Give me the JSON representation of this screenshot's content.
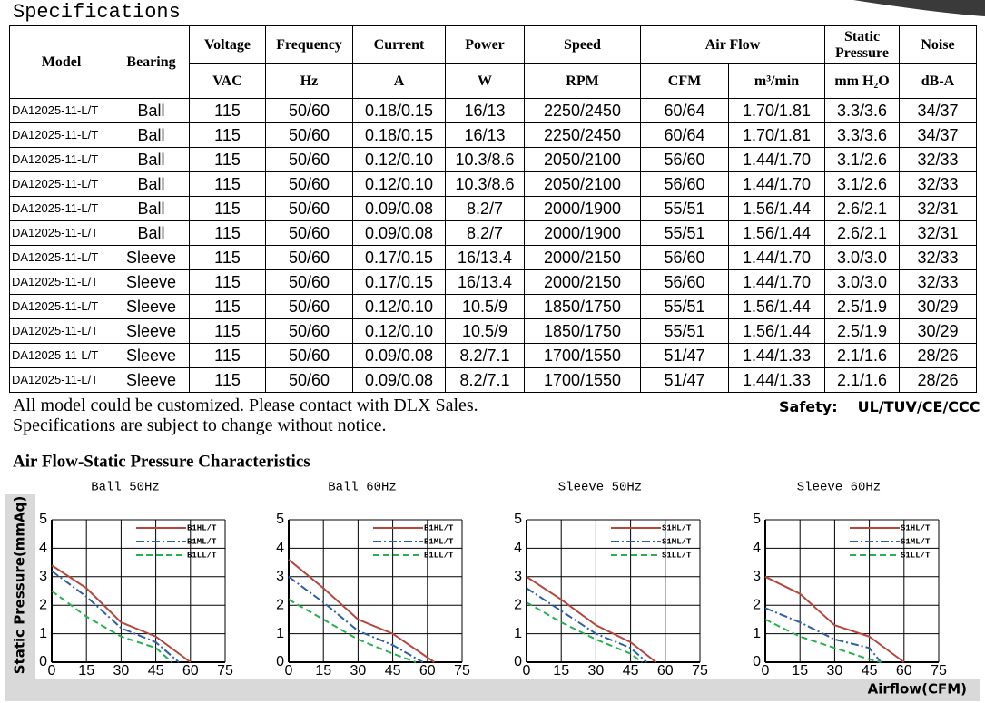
{
  "heading": "Specifications",
  "table": {
    "header_top": [
      "Model",
      "Bearing",
      "Voltage",
      "Frequency",
      "Current",
      "Power",
      "Speed",
      "Air Flow",
      "Static Pressure",
      "Noise"
    ],
    "header_units": [
      "VAC",
      "Hz",
      "A",
      "W",
      "RPM",
      "CFM",
      "m³/min",
      "mm H₂O",
      "dB-A"
    ],
    "rows": [
      [
        "DA12025-11-L/T",
        "Ball",
        "115",
        "50/60",
        "0.18/0.15",
        "16/13",
        "2250/2450",
        "60/64",
        "1.70/1.81",
        "3.3/3.6",
        "34/37"
      ],
      [
        "DA12025-11-L/T",
        "Ball",
        "115",
        "50/60",
        "0.18/0.15",
        "16/13",
        "2250/2450",
        "60/64",
        "1.70/1.81",
        "3.3/3.6",
        "34/37"
      ],
      [
        "DA12025-11-L/T",
        "Ball",
        "115",
        "50/60",
        "0.12/0.10",
        "10.3/8.6",
        "2050/2100",
        "56/60",
        "1.44/1.70",
        "3.1/2.6",
        "32/33"
      ],
      [
        "DA12025-11-L/T",
        "Ball",
        "115",
        "50/60",
        "0.12/0.10",
        "10.3/8.6",
        "2050/2100",
        "56/60",
        "1.44/1.70",
        "3.1/2.6",
        "32/33"
      ],
      [
        "DA12025-11-L/T",
        "Ball",
        "115",
        "50/60",
        "0.09/0.08",
        "8.2/7",
        "2000/1900",
        "55/51",
        "1.56/1.44",
        "2.6/2.1",
        "32/31"
      ],
      [
        "DA12025-11-L/T",
        "Ball",
        "115",
        "50/60",
        "0.09/0.08",
        "8.2/7",
        "2000/1900",
        "55/51",
        "1.56/1.44",
        "2.6/2.1",
        "32/31"
      ],
      [
        "DA12025-11-L/T",
        "Sleeve",
        "115",
        "50/60",
        "0.17/0.15",
        "16/13.4",
        "2000/2150",
        "56/60",
        "1.44/1.70",
        "3.0/3.0",
        "32/33"
      ],
      [
        "DA12025-11-L/T",
        "Sleeve",
        "115",
        "50/60",
        "0.17/0.15",
        "16/13.4",
        "2000/2150",
        "56/60",
        "1.44/1.70",
        "3.0/3.0",
        "32/33"
      ],
      [
        "DA12025-11-L/T",
        "Sleeve",
        "115",
        "50/60",
        "0.12/0.10",
        "10.5/9",
        "1850/1750",
        "55/51",
        "1.56/1.44",
        "2.5/1.9",
        "30/29"
      ],
      [
        "DA12025-11-L/T",
        "Sleeve",
        "115",
        "50/60",
        "0.12/0.10",
        "10.5/9",
        "1850/1750",
        "55/51",
        "1.56/1.44",
        "2.5/1.9",
        "30/29"
      ],
      [
        "DA12025-11-L/T",
        "Sleeve",
        "115",
        "50/60",
        "0.09/0.08",
        "8.2/7.1",
        "1700/1550",
        "51/47",
        "1.44/1.33",
        "2.1/1.6",
        "28/26"
      ],
      [
        "DA12025-11-L/T",
        "Sleeve",
        "115",
        "50/60",
        "0.09/0.08",
        "8.2/7.1",
        "1700/1550",
        "51/47",
        "1.44/1.33",
        "2.1/1.6",
        "28/26"
      ]
    ]
  },
  "notes": [
    "All model could be customized. Please contact with DLX Sales.",
    "Specifications are subject to change without notice."
  ],
  "safety": {
    "label": "Safety:",
    "value": "UL/TUV/CE/CCC"
  },
  "section_title": "Air Flow-Static Pressure Characteristics",
  "y_axis_label": "Static Pressure(mmAq)",
  "x_axis_label": "Airflow(CFM)",
  "chart_data": [
    {
      "type": "line",
      "title": "Ball 50Hz",
      "xlim": [
        0,
        75
      ],
      "xticks": [
        0,
        15,
        30,
        45,
        60,
        75
      ],
      "ylim": [
        0,
        5
      ],
      "yticks": [
        0,
        1,
        2,
        3,
        4,
        5
      ],
      "grid": true,
      "series": [
        {
          "name": "B1HL/T",
          "color": "#b5473f",
          "dash": "solid",
          "x": [
            0,
            15,
            30,
            45,
            60
          ],
          "values": [
            3.4,
            2.6,
            1.4,
            0.9,
            0
          ]
        },
        {
          "name": "B1ML/T",
          "color": "#2e5fa8",
          "dash": "dashdot",
          "x": [
            0,
            15,
            30,
            45,
            55
          ],
          "values": [
            3.2,
            2.3,
            1.2,
            0.7,
            0
          ]
        },
        {
          "name": "B1LL/T",
          "color": "#27b050",
          "dash": "dashed",
          "x": [
            0,
            15,
            30,
            45,
            52
          ],
          "values": [
            2.5,
            1.6,
            0.9,
            0.5,
            0
          ]
        }
      ]
    },
    {
      "type": "line",
      "title": "Ball 60Hz",
      "xlim": [
        0,
        75
      ],
      "xticks": [
        0,
        15,
        30,
        45,
        60,
        75
      ],
      "ylim": [
        0,
        5
      ],
      "yticks": [
        0,
        1,
        2,
        3,
        4,
        5
      ],
      "grid": true,
      "series": [
        {
          "name": "B1HL/T",
          "color": "#b5473f",
          "dash": "solid",
          "x": [
            0,
            15,
            30,
            45,
            63
          ],
          "values": [
            3.6,
            2.6,
            1.5,
            1.0,
            0
          ]
        },
        {
          "name": "B1ML/T",
          "color": "#2e5fa8",
          "dash": "dashdot",
          "x": [
            0,
            15,
            30,
            45,
            58
          ],
          "values": [
            3.0,
            2.1,
            1.1,
            0.6,
            0
          ]
        },
        {
          "name": "B1LL/T",
          "color": "#27b050",
          "dash": "dashed",
          "x": [
            0,
            15,
            30,
            45,
            55
          ],
          "values": [
            2.2,
            1.5,
            0.8,
            0.3,
            0
          ]
        }
      ]
    },
    {
      "type": "line",
      "title": "Sleeve 50Hz",
      "xlim": [
        0,
        75
      ],
      "xticks": [
        0,
        15,
        30,
        45,
        60,
        75
      ],
      "ylim": [
        0,
        5
      ],
      "yticks": [
        0,
        1,
        2,
        3,
        4,
        5
      ],
      "grid": true,
      "series": [
        {
          "name": "S1HL/T",
          "color": "#b5473f",
          "dash": "solid",
          "x": [
            0,
            15,
            30,
            45,
            56
          ],
          "values": [
            3.0,
            2.2,
            1.3,
            0.7,
            0
          ]
        },
        {
          "name": "S1ML/T",
          "color": "#2e5fa8",
          "dash": "dashdot",
          "x": [
            0,
            15,
            30,
            45,
            52
          ],
          "values": [
            2.6,
            1.8,
            1.0,
            0.5,
            0
          ]
        },
        {
          "name": "S1LL/T",
          "color": "#27b050",
          "dash": "dashed",
          "x": [
            0,
            15,
            30,
            45,
            50
          ],
          "values": [
            2.1,
            1.4,
            0.8,
            0.3,
            0
          ]
        }
      ]
    },
    {
      "type": "line",
      "title": "Sleeve 60Hz",
      "xlim": [
        0,
        75
      ],
      "xticks": [
        0,
        15,
        30,
        45,
        60,
        75
      ],
      "ylim": [
        0,
        5
      ],
      "yticks": [
        0,
        1,
        2,
        3,
        4,
        5
      ],
      "grid": true,
      "series": [
        {
          "name": "S1HL/T",
          "color": "#b5473f",
          "dash": "solid",
          "x": [
            0,
            15,
            30,
            45,
            60
          ],
          "values": [
            3.0,
            2.4,
            1.3,
            0.9,
            0
          ]
        },
        {
          "name": "S1ML/T",
          "color": "#2e5fa8",
          "dash": "dashdot",
          "x": [
            0,
            15,
            30,
            45,
            50
          ],
          "values": [
            1.9,
            1.4,
            0.8,
            0.5,
            0
          ]
        },
        {
          "name": "S1LL/T",
          "color": "#27b050",
          "dash": "dashed",
          "x": [
            0,
            15,
            30,
            45,
            50
          ],
          "values": [
            1.5,
            0.9,
            0.5,
            0.1,
            0
          ]
        }
      ]
    }
  ]
}
